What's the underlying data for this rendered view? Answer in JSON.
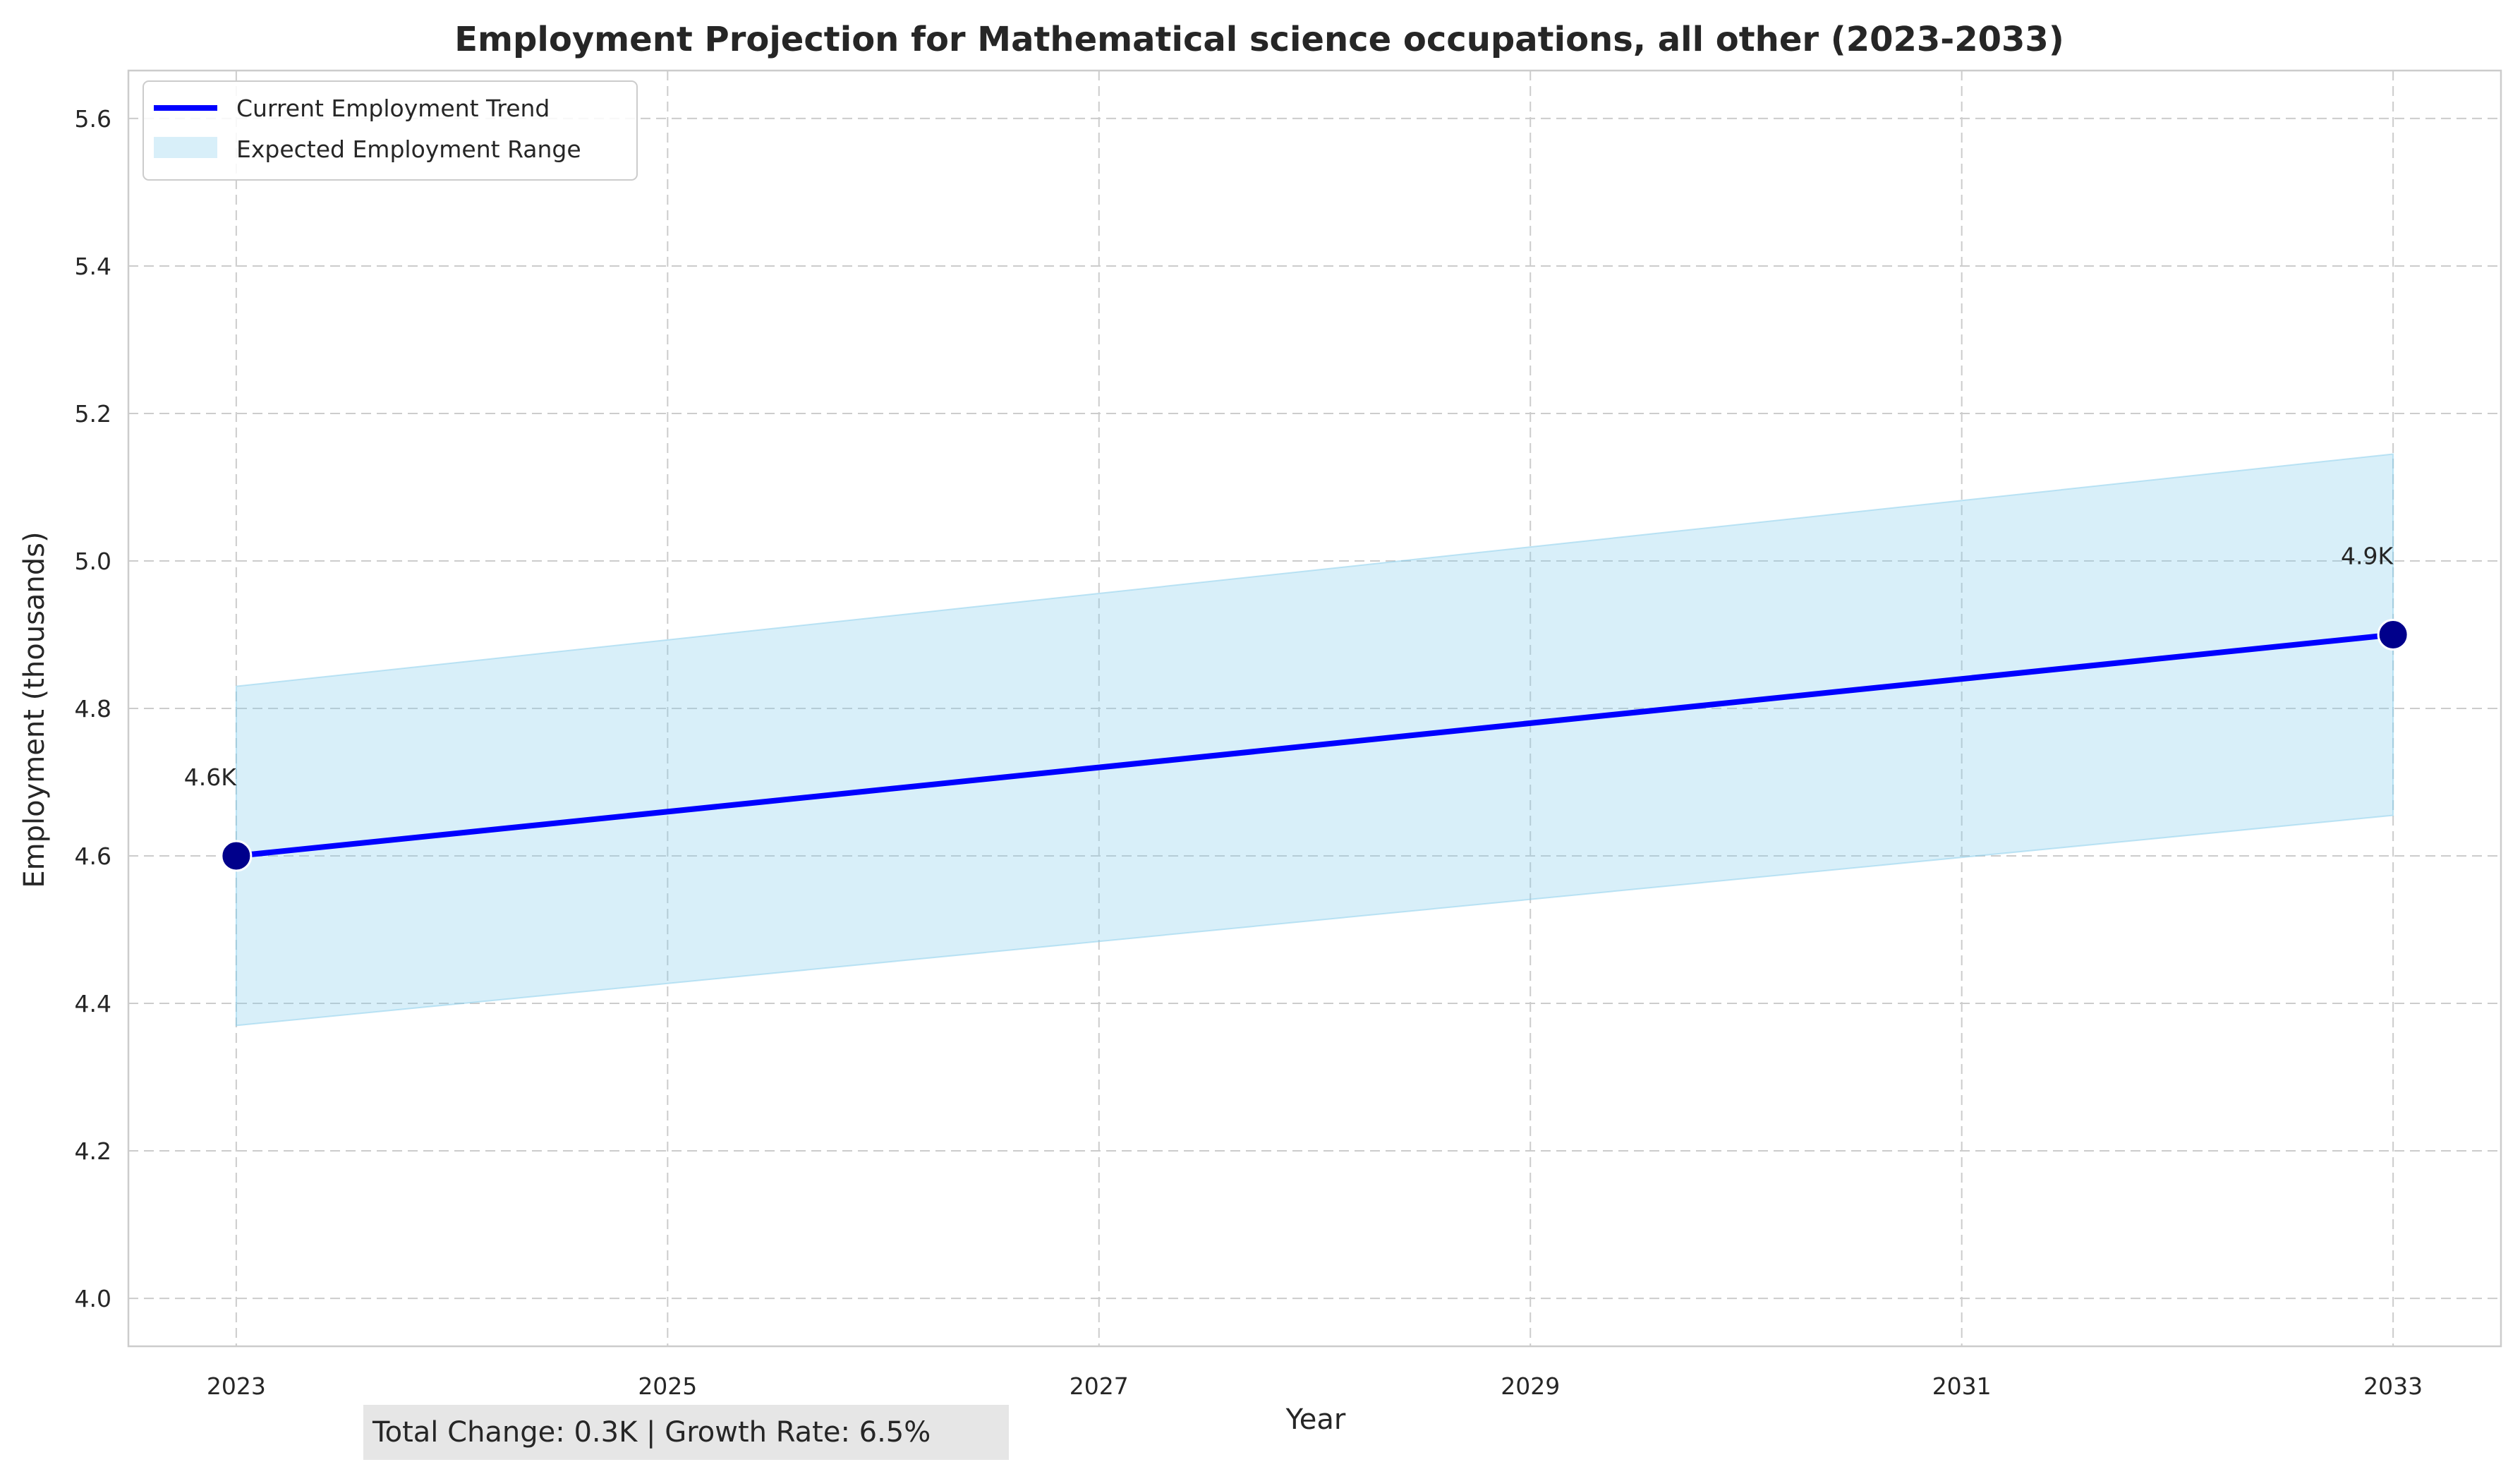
{
  "chart_data": {
    "type": "line",
    "title": "Employment Projection for Mathematical science occupations, all other (2023-2033)",
    "xlabel": "Year",
    "ylabel": "Employment (thousands)",
    "xlim": [
      2022.5,
      2033.5
    ],
    "ylim": [
      3.935,
      5.665
    ],
    "x_ticks": [
      "2023",
      "2025",
      "2027",
      "2029",
      "2031",
      "2033"
    ],
    "y_ticks": [
      "4.0",
      "4.2",
      "4.4",
      "4.6",
      "4.8",
      "5.0",
      "5.2",
      "5.4",
      "5.6"
    ],
    "grid": true,
    "legend_position": "top-left",
    "series": [
      {
        "name": "Current Employment Trend",
        "type": "line",
        "color": "#0000ff",
        "marker_color": "#00008b",
        "x": [
          2023,
          2033
        ],
        "y": [
          4.6,
          4.9
        ]
      },
      {
        "name": "Expected Employment Range",
        "type": "band",
        "color": "#87ceeb",
        "x": [
          2023,
          2033
        ],
        "lower": [
          4.37,
          4.655
        ],
        "upper": [
          4.83,
          5.145
        ]
      }
    ],
    "data_labels": [
      {
        "x": 2023,
        "y": 4.6,
        "text": "4.6K"
      },
      {
        "x": 2033,
        "y": 4.9,
        "text": "4.9K"
      }
    ],
    "footer": "Total Change: 0.3K | Growth Rate: 6.5%"
  }
}
